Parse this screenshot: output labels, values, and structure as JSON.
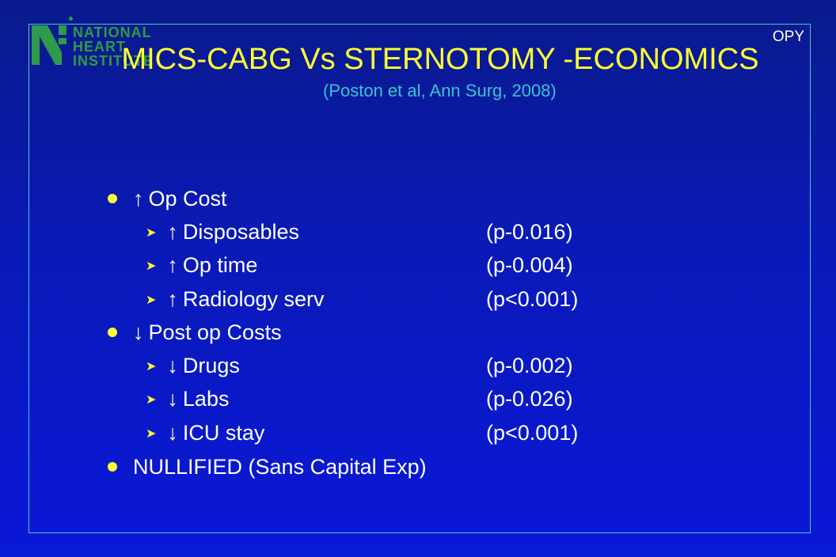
{
  "logo": {
    "line1": "NATIONAL",
    "line2": "HEART",
    "line3": "INSTITUTE",
    "color": "#2e9b4a"
  },
  "corner_text": "OPY",
  "title": "MICS-CABG Vs STERNOTOMY -ECONOMICS",
  "subtitle": "(Poston et al, Ann Surg, 2008)",
  "bullets": [
    {
      "arrow": "↑",
      "text": "Op Cost"
    },
    {
      "arrow": "↑",
      "text": "Disposables",
      "p": "(p-0.016)"
    },
    {
      "arrow": "↑",
      "text": "Op time",
      "p": "(p-0.004)"
    },
    {
      "arrow": "↑",
      "text": "Radiology serv",
      "p": "(p<0.001)"
    },
    {
      "arrow": "↓",
      "text": "Post op Costs"
    },
    {
      "arrow": "↓",
      "text": "Drugs",
      "p": "(p-0.002)"
    },
    {
      "arrow": "↓",
      "text": "Labs",
      "p": "(p-0.026)"
    },
    {
      "arrow": "↓",
      "text": "ICU stay",
      "p": "(p<0.001)"
    },
    {
      "text": "NULLIFIED (Sans Capital Exp)"
    }
  ],
  "colors": {
    "title": "#ffff33",
    "subtitle": "#36c5d3",
    "bullet": "#ffff33",
    "text": "#ffffff"
  }
}
